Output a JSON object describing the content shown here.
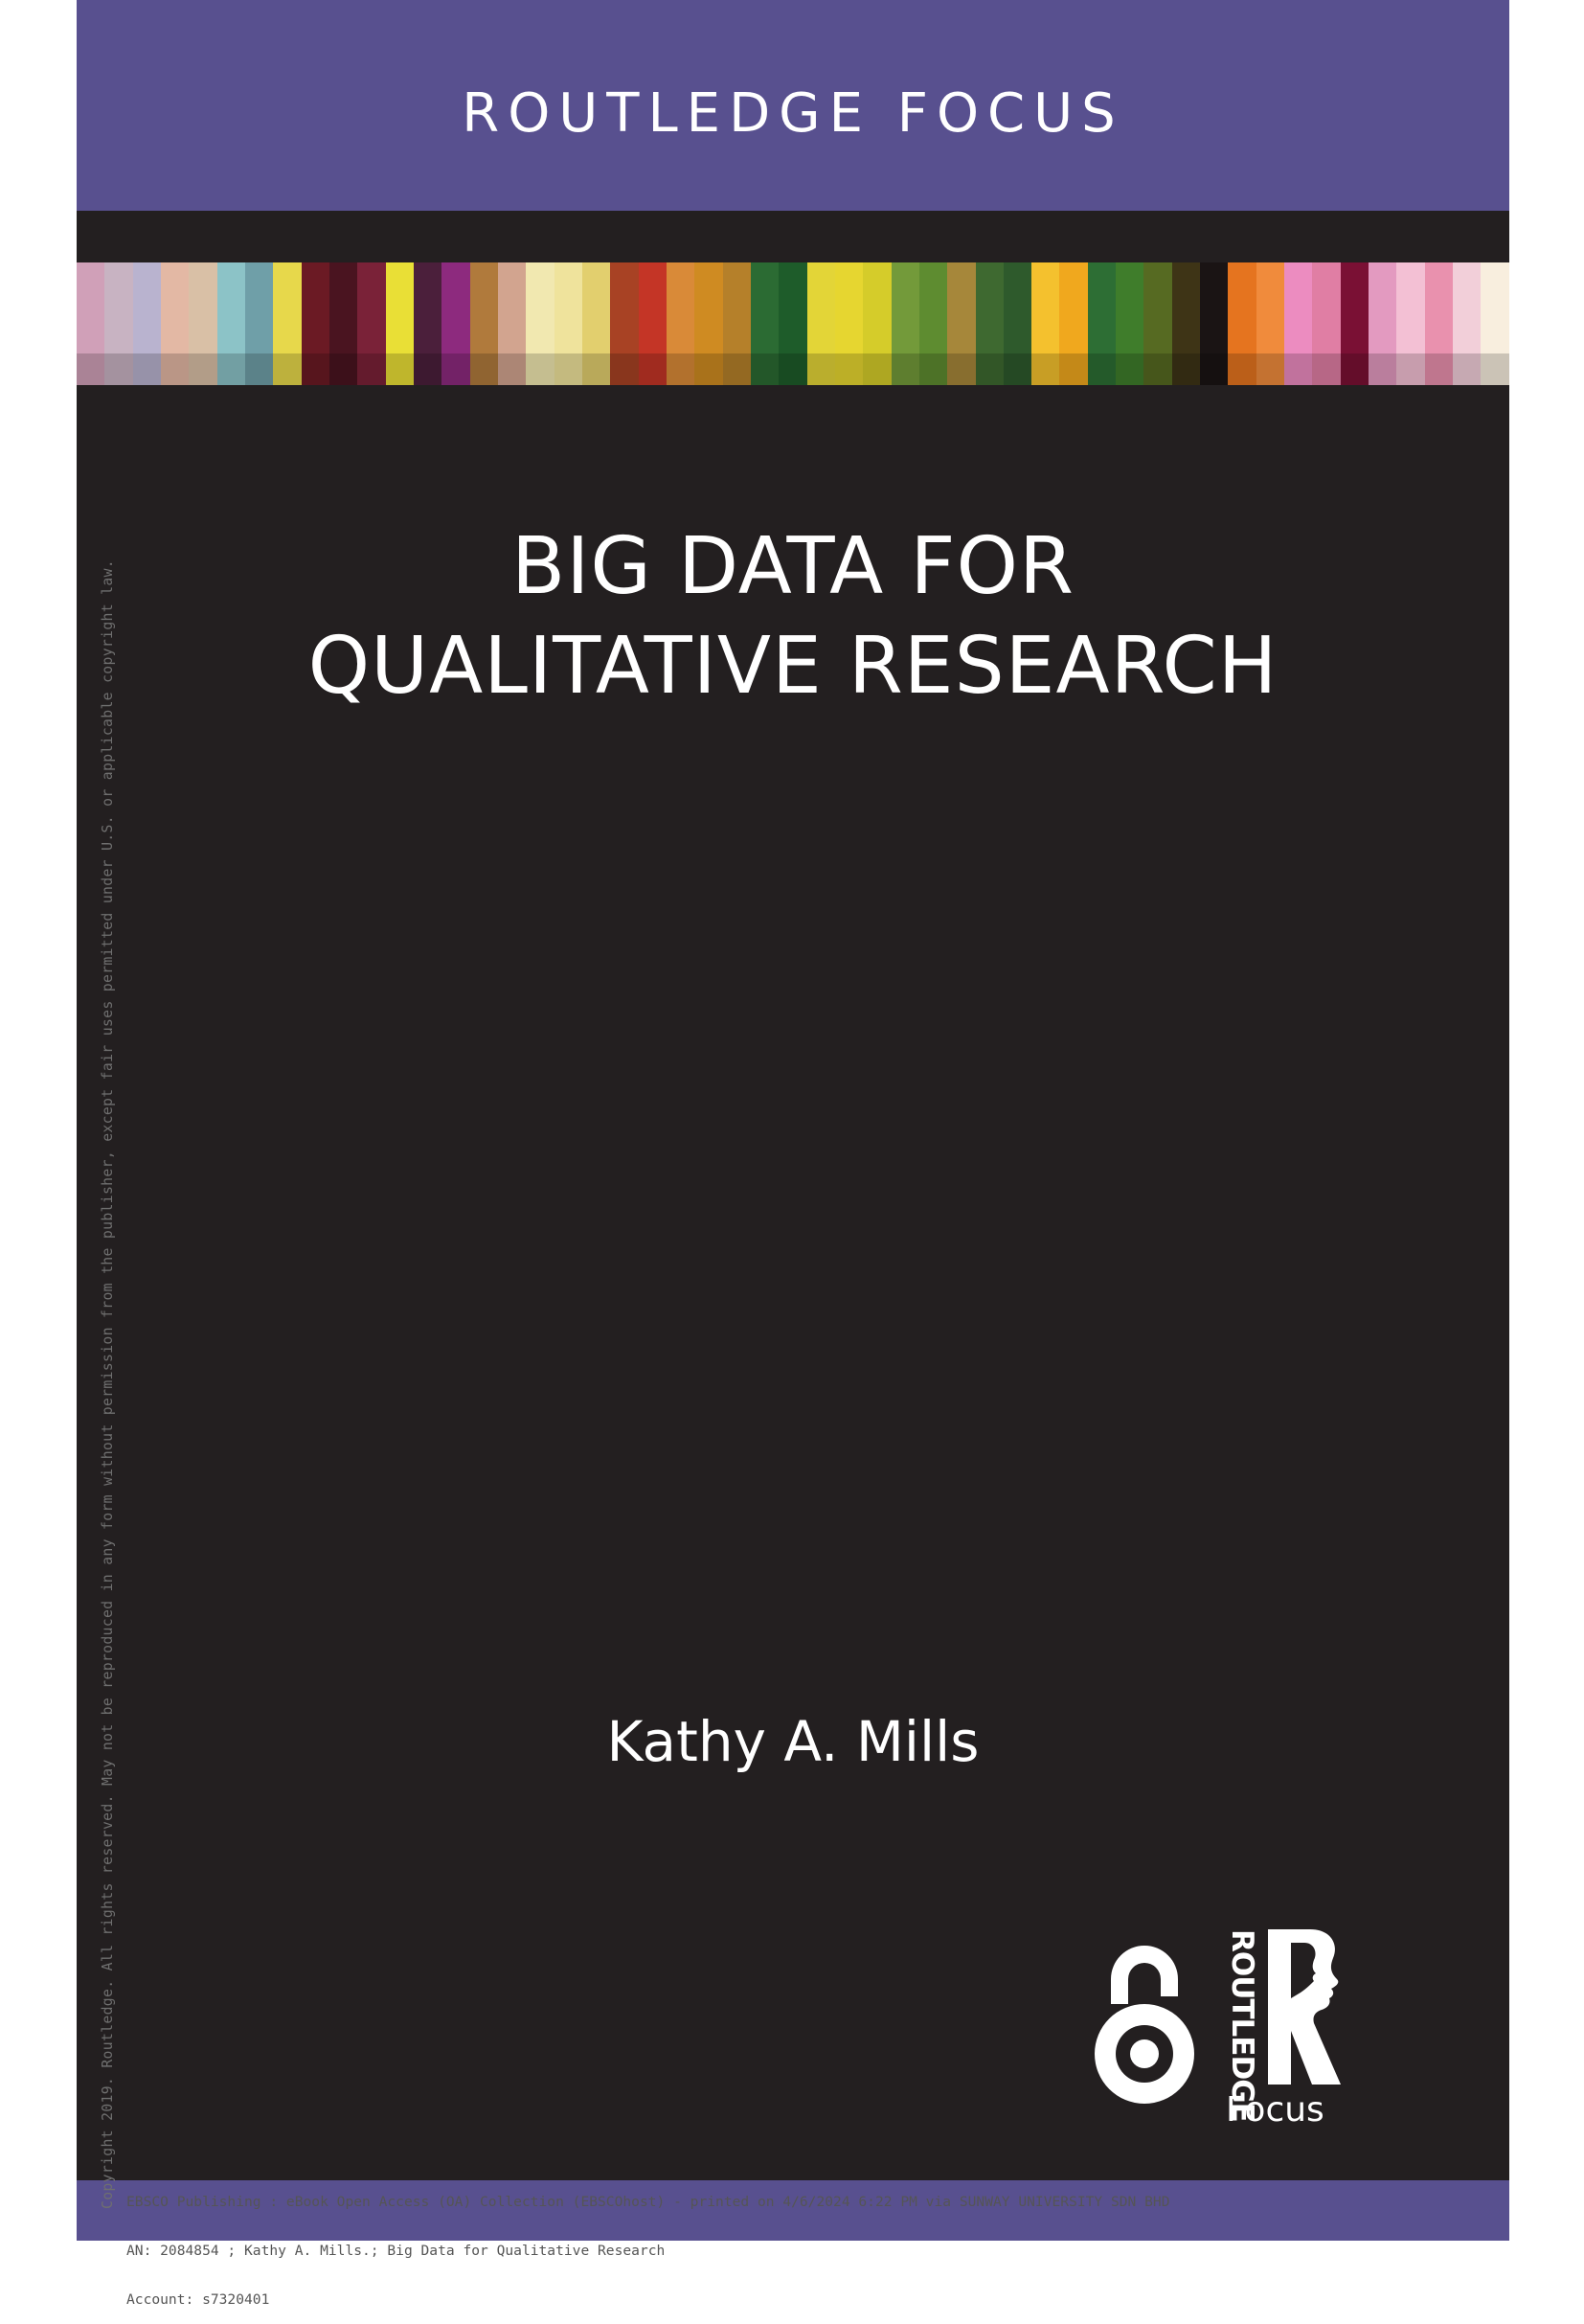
{
  "cover": {
    "series_name": "ROUTLEDGE FOCUS",
    "title_lines": [
      "BIG DATA FOR",
      "QUALITATIVE RESEARCH"
    ],
    "author": "Kathy A. Mills",
    "publisher_mark_text": "ROUTLEDGE",
    "publisher_series_label": "Focus",
    "colors": {
      "band": "#58508f",
      "background": "#231f20",
      "text": "#ffffff"
    },
    "stripe_colors": [
      "#d0a0b8",
      "#c8b3c2",
      "#b9b3cf",
      "#e3b8a4",
      "#d9c0a6",
      "#8cc3c7",
      "#6f9fa8",
      "#e7d84b",
      "#6b1a24",
      "#4a1420",
      "#7a2238",
      "#e9df36",
      "#4b1f3b",
      "#8d2a7e",
      "#b07a3c",
      "#d2a48f",
      "#f1e8b0",
      "#efe39c",
      "#e2cf6e",
      "#a84224",
      "#c43526",
      "#d98a38",
      "#cf8b22",
      "#b5802a",
      "#2b6b33",
      "#1e5c2a",
      "#e3d537",
      "#e6d630",
      "#d5cc2a",
      "#739a3a",
      "#5e8c30",
      "#a6873a",
      "#3e6930",
      "#2e5a2c",
      "#f4c12e",
      "#f0a81e",
      "#2d6e34",
      "#3f7d2b",
      "#566a22",
      "#3e3416",
      "#1a1414",
      "#e5741f",
      "#f08b3c",
      "#ec8cc0",
      "#e07ea4",
      "#7a1034",
      "#e39ac0",
      "#f3c0d4",
      "#e991ae",
      "#f2cfd9",
      "#f8eede"
    ],
    "icons": {
      "open_access": "open-access-icon",
      "publisher": "routledge-profile-icon"
    }
  },
  "notices": {
    "side": "Copyright 2019. Routledge. All rights reserved. May not be reproduced in any form without permission from the publisher, except fair uses permitted under U.S. or applicable copyright law.",
    "footer_lines": [
      "EBSCO Publishing : eBook Open Access (OA) Collection (EBSCOhost) - printed on 4/6/2024 6:22 PM via SUNWAY UNIVERSITY SDN BHD",
      "AN: 2084854 ; Kathy A. Mills.; Big Data for Qualitative Research",
      "Account: s7320401"
    ]
  }
}
